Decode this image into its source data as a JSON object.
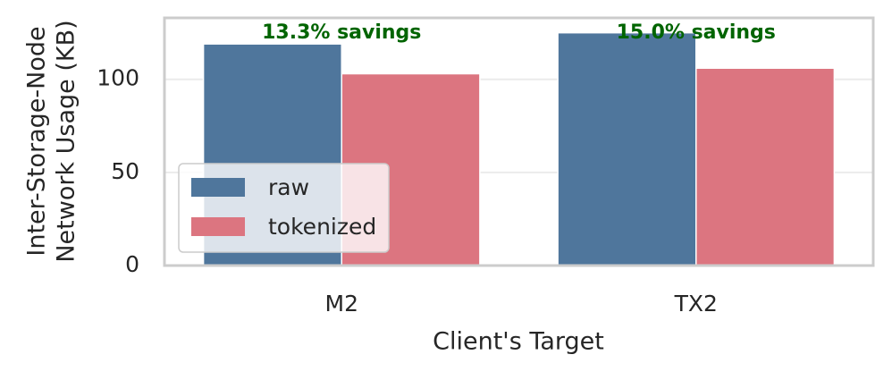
{
  "chart_data": {
    "type": "grouped_bar",
    "xlabel": "Client's Target",
    "ylabel": [
      "Inter-Storage-Node",
      "Network Usage (KB)"
    ],
    "categories": [
      "M2",
      "TX2"
    ],
    "series": [
      {
        "name": "raw",
        "color": "#4f769c",
        "values": [
          119,
          125
        ]
      },
      {
        "name": "tokenized",
        "color": "#dc7580",
        "values": [
          103,
          106
        ]
      }
    ],
    "annotations": [
      "13.3% savings",
      "15.0% savings"
    ],
    "annotation_color": "#006400",
    "ylim": [
      0,
      133
    ],
    "yticks": [
      0,
      50,
      100
    ],
    "grid": true,
    "legend": "lower left"
  }
}
